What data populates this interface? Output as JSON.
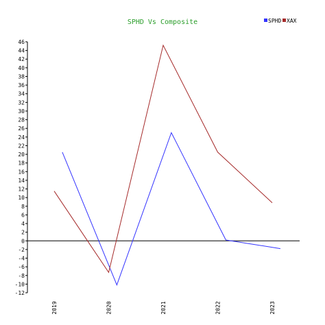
{
  "chart_data": {
    "type": "line",
    "title": "SPHD Vs Composite",
    "xlabel": "",
    "ylabel": "",
    "ylim": [
      -12,
      46
    ],
    "yticks": [
      46,
      44,
      42,
      40,
      38,
      36,
      34,
      32,
      30,
      28,
      26,
      24,
      22,
      20,
      18,
      16,
      14,
      12,
      10,
      8,
      6,
      4,
      2,
      0,
      -2,
      -4,
      -6,
      -8,
      -10,
      -12
    ],
    "xlabels": [
      "2019",
      "2020",
      "2021",
      "2022",
      "2023"
    ],
    "series": [
      {
        "name": "SPHD",
        "color": "#3333ff",
        "points": [
          {
            "x": 2019.15,
            "y": 20.5
          },
          {
            "x": 2020.15,
            "y": -10.2
          },
          {
            "x": 2021.15,
            "y": 25.0
          },
          {
            "x": 2022.15,
            "y": 0.2
          },
          {
            "x": 2023.15,
            "y": -1.8
          }
        ]
      },
      {
        "name": "XAX",
        "color": "#a52a2a",
        "points": [
          {
            "x": 2019.0,
            "y": 11.5
          },
          {
            "x": 2020.0,
            "y": -7.3
          },
          {
            "x": 2021.0,
            "y": 45.2
          },
          {
            "x": 2022.0,
            "y": 20.5
          },
          {
            "x": 2023.0,
            "y": 8.8
          }
        ]
      }
    ]
  }
}
